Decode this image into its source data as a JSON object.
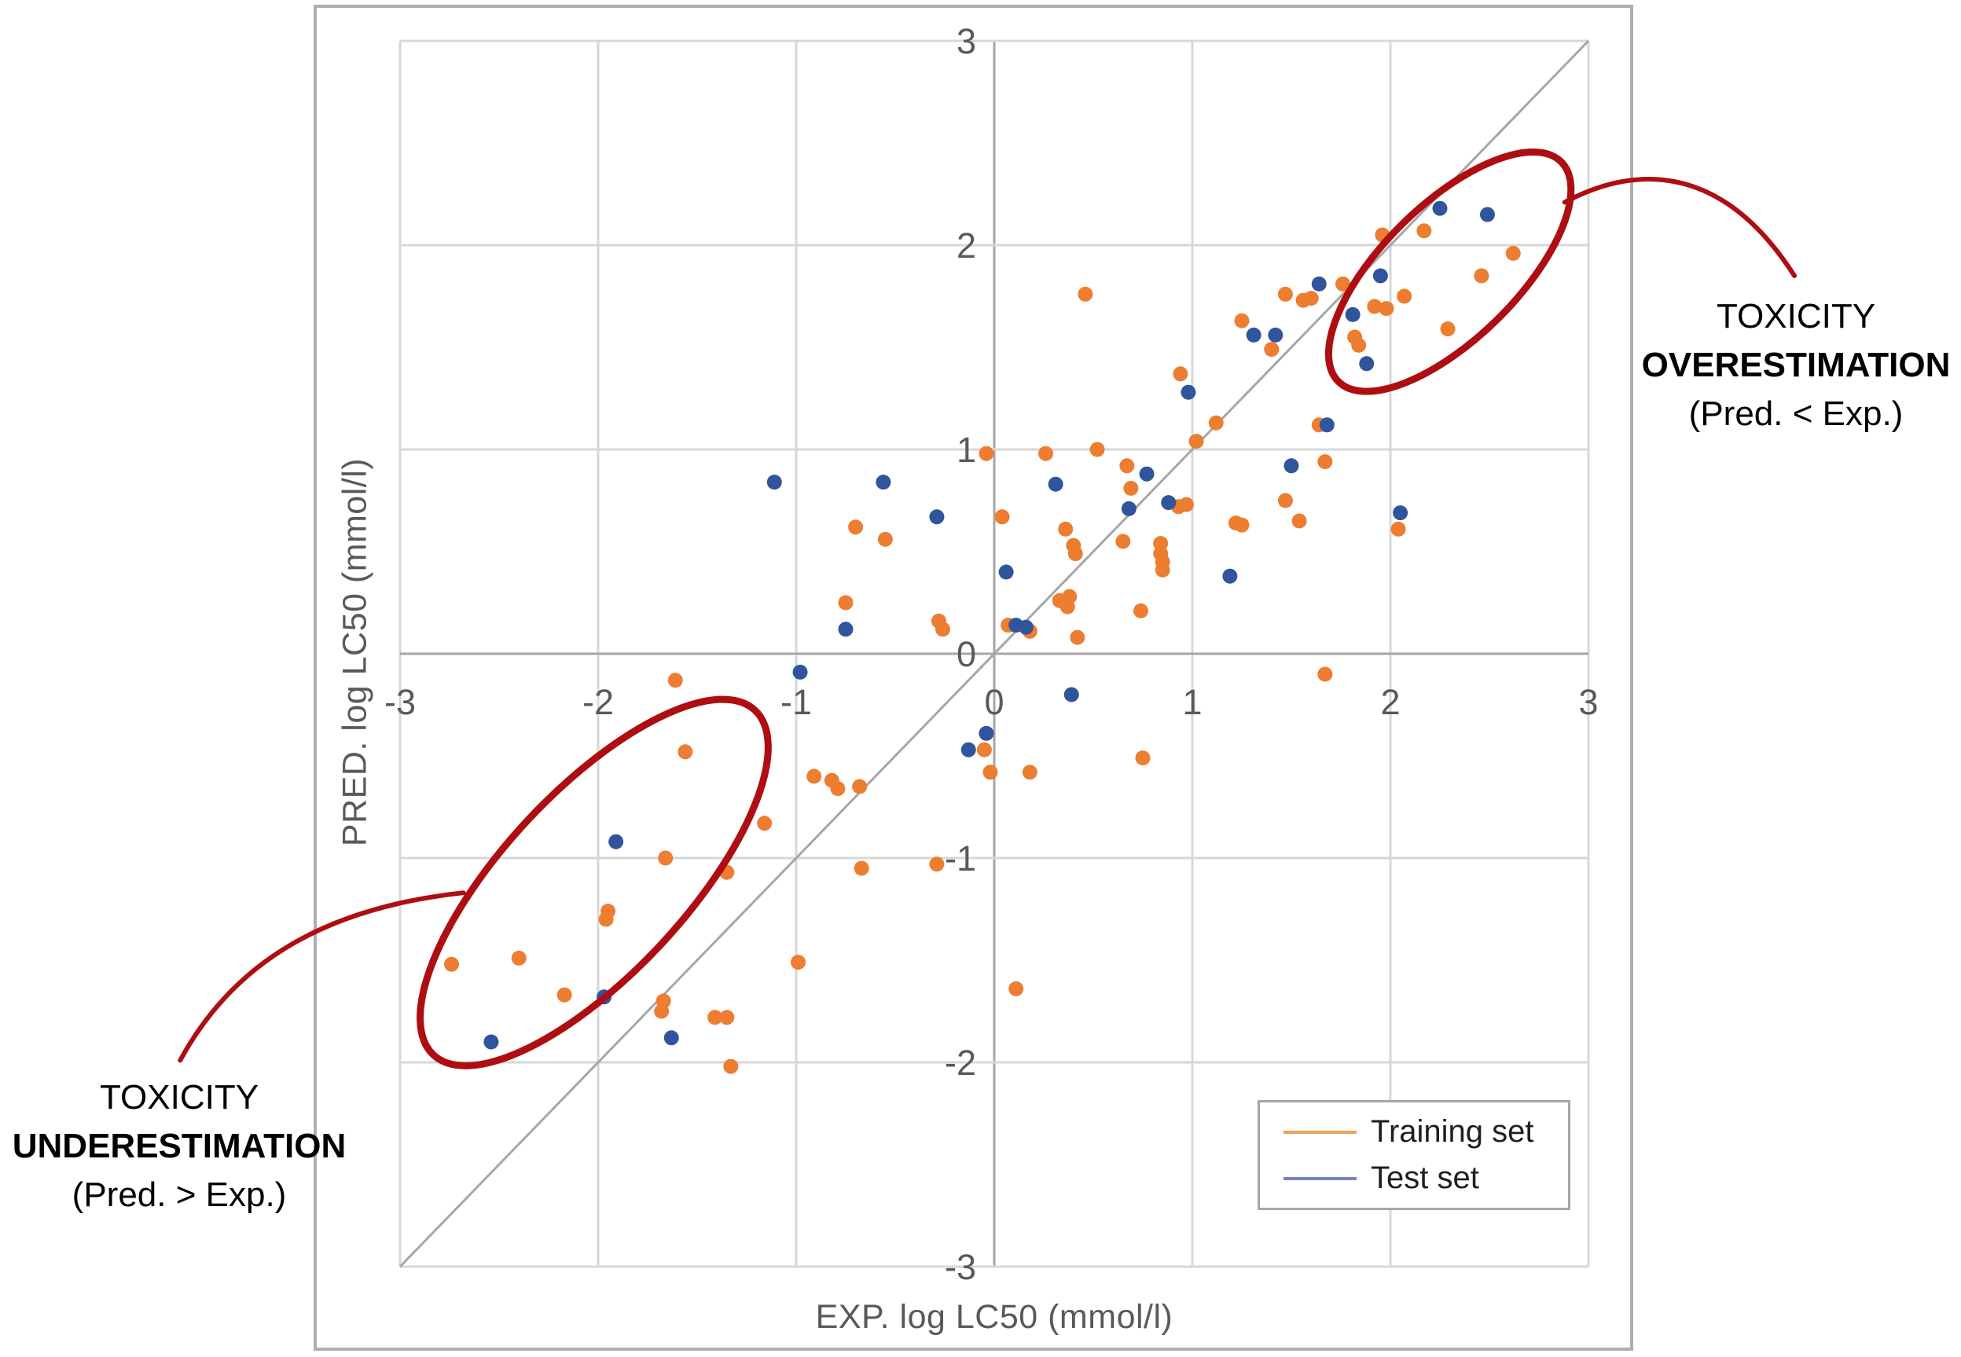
{
  "figure": {
    "background": "#FFFFFF",
    "border_color": "#AEAEAE"
  },
  "chart_data": {
    "type": "scatter",
    "title": "",
    "xlabel": "EXP. log LC50 (mmol/l)",
    "ylabel": "PRED. log LC50 (mmol/l)",
    "xlim": [
      -3,
      3
    ],
    "ylim": [
      -3,
      3
    ],
    "x_ticks": [
      -3,
      -2,
      -1,
      0,
      1,
      2,
      3
    ],
    "y_ticks": [
      3,
      2,
      1,
      0,
      -1,
      -2,
      -3
    ],
    "grid": true,
    "identity_line": true,
    "colors": {
      "grid": "#D7D7D7",
      "axis": "#A6A6A6",
      "identity_line": "#A6A6A6",
      "tick_text": "#595959",
      "annotation_red": "#AE0E11"
    },
    "legend": {
      "position": "bottom-right",
      "entries": [
        {
          "label": "Training set",
          "swatch_color": "#ECA160"
        },
        {
          "label": "Test set",
          "swatch_color": "#7383C3"
        }
      ]
    },
    "series": [
      {
        "name": "Training set",
        "color": "#ED7D31",
        "points": [
          [
            -0.7,
            0.62
          ],
          [
            -0.55,
            0.56
          ],
          [
            0.04,
            0.67
          ],
          [
            0.36,
            0.61
          ],
          [
            0.4,
            0.53
          ],
          [
            0.41,
            0.49
          ],
          [
            0.67,
            0.92
          ],
          [
            0.69,
            0.81
          ],
          [
            0.93,
            0.72
          ],
          [
            0.97,
            0.73
          ],
          [
            0.65,
            0.55
          ],
          [
            0.84,
            0.54
          ],
          [
            0.84,
            0.49
          ],
          [
            0.85,
            0.45
          ],
          [
            0.85,
            0.41
          ],
          [
            0.33,
            0.26
          ],
          [
            0.38,
            0.28
          ],
          [
            0.37,
            0.23
          ],
          [
            0.74,
            0.21
          ],
          [
            -0.75,
            0.25
          ],
          [
            -0.28,
            0.16
          ],
          [
            -0.26,
            0.12
          ],
          [
            0.07,
            0.14
          ],
          [
            0.18,
            0.11
          ],
          [
            0.42,
            0.08
          ],
          [
            -0.05,
            -0.47
          ],
          [
            -0.02,
            -0.58
          ],
          [
            0.18,
            -0.58
          ],
          [
            0.75,
            -0.51
          ],
          [
            -0.91,
            -0.6
          ],
          [
            -0.82,
            -0.62
          ],
          [
            -0.79,
            -0.66
          ],
          [
            -0.68,
            -0.65
          ],
          [
            -0.67,
            -1.05
          ],
          [
            -0.29,
            -1.03
          ],
          [
            2.17,
            2.07
          ],
          [
            1.96,
            2.05
          ],
          [
            2.62,
            1.96
          ],
          [
            2.46,
            1.85
          ],
          [
            1.76,
            1.81
          ],
          [
            1.47,
            1.76
          ],
          [
            1.56,
            1.73
          ],
          [
            1.6,
            1.74
          ],
          [
            2.07,
            1.75
          ],
          [
            1.92,
            1.7
          ],
          [
            1.98,
            1.69
          ],
          [
            1.25,
            1.63
          ],
          [
            1.4,
            1.49
          ],
          [
            1.82,
            1.55
          ],
          [
            1.84,
            1.51
          ],
          [
            2.29,
            1.59
          ],
          [
            1.12,
            1.13
          ],
          [
            1.64,
            1.12
          ],
          [
            0.46,
            1.76
          ],
          [
            0.94,
            1.37
          ],
          [
            -0.04,
            0.98
          ],
          [
            0.26,
            0.98
          ],
          [
            0.52,
            1.0
          ],
          [
            1.02,
            1.04
          ],
          [
            -1.61,
            -0.13
          ],
          [
            -1.56,
            -0.48
          ],
          [
            -1.16,
            -0.83
          ],
          [
            -1.66,
            -1.0
          ],
          [
            -1.35,
            -1.07
          ],
          [
            -1.95,
            -1.26
          ],
          [
            -1.96,
            -1.3
          ],
          [
            -2.74,
            -1.52
          ],
          [
            -2.4,
            -1.49
          ],
          [
            -0.99,
            -1.51
          ],
          [
            -2.17,
            -1.67
          ],
          [
            -1.67,
            -1.7
          ],
          [
            -1.68,
            -1.75
          ],
          [
            -1.41,
            -1.78
          ],
          [
            -1.35,
            -1.78
          ],
          [
            -1.33,
            -2.02
          ],
          [
            0.11,
            -1.64
          ],
          [
            1.67,
            0.94
          ],
          [
            1.47,
            0.75
          ],
          [
            1.54,
            0.65
          ],
          [
            1.22,
            0.64
          ],
          [
            1.25,
            0.63
          ],
          [
            2.04,
            0.61
          ],
          [
            1.67,
            -0.1
          ]
        ]
      },
      {
        "name": "Test set",
        "color": "#30559C",
        "points": [
          [
            -0.56,
            0.84
          ],
          [
            -0.29,
            0.67
          ],
          [
            0.31,
            0.83
          ],
          [
            0.77,
            0.88
          ],
          [
            0.68,
            0.71
          ],
          [
            0.88,
            0.74
          ],
          [
            0.06,
            0.4
          ],
          [
            -0.75,
            0.12
          ],
          [
            0.11,
            0.14
          ],
          [
            0.16,
            0.13
          ],
          [
            -0.98,
            -0.09
          ],
          [
            0.39,
            -0.2
          ],
          [
            -0.04,
            -0.39
          ],
          [
            -0.13,
            -0.47
          ],
          [
            2.25,
            2.18
          ],
          [
            2.49,
            2.15
          ],
          [
            1.95,
            1.85
          ],
          [
            1.64,
            1.81
          ],
          [
            1.81,
            1.66
          ],
          [
            1.31,
            1.56
          ],
          [
            1.42,
            1.56
          ],
          [
            1.88,
            1.42
          ],
          [
            1.68,
            1.12
          ],
          [
            0.98,
            1.28
          ],
          [
            -1.11,
            0.84
          ],
          [
            -1.91,
            -0.92
          ],
          [
            -2.54,
            -1.9
          ],
          [
            -1.97,
            -1.68
          ],
          [
            -1.63,
            -1.88
          ],
          [
            1.5,
            0.92
          ],
          [
            2.05,
            0.69
          ],
          [
            1.19,
            0.38
          ]
        ]
      }
    ],
    "annotations": {
      "overestimation": {
        "lines": [
          "TOXICITY",
          "OVERESTIMATION",
          "(Pred. < Exp.)"
        ],
        "bold_line_index": 1,
        "ellipse": {
          "cx": 2.3,
          "cy": 1.87,
          "rx": 0.79,
          "ry": 0.34,
          "angle": -44.5
        },
        "connector": [
          [
            2.88,
            2.21
          ],
          [
            3.23,
            2.39
          ],
          [
            3.67,
            2.41
          ],
          [
            4.04,
            1.85
          ]
        ]
      },
      "underestimation": {
        "lines": [
          "TOXICITY",
          "UNDERESTIMATION",
          "(Pred. > Exp.)"
        ],
        "bold_line_index": 1,
        "ellipse": {
          "cx": -2.02,
          "cy": -1.12,
          "rx": 1.19,
          "ry": 0.46,
          "angle": -47
        },
        "connector": [
          [
            -4.11,
            -1.99
          ],
          [
            -3.83,
            -1.49
          ],
          [
            -3.35,
            -1.24
          ],
          [
            -2.68,
            -1.17
          ]
        ]
      }
    }
  }
}
